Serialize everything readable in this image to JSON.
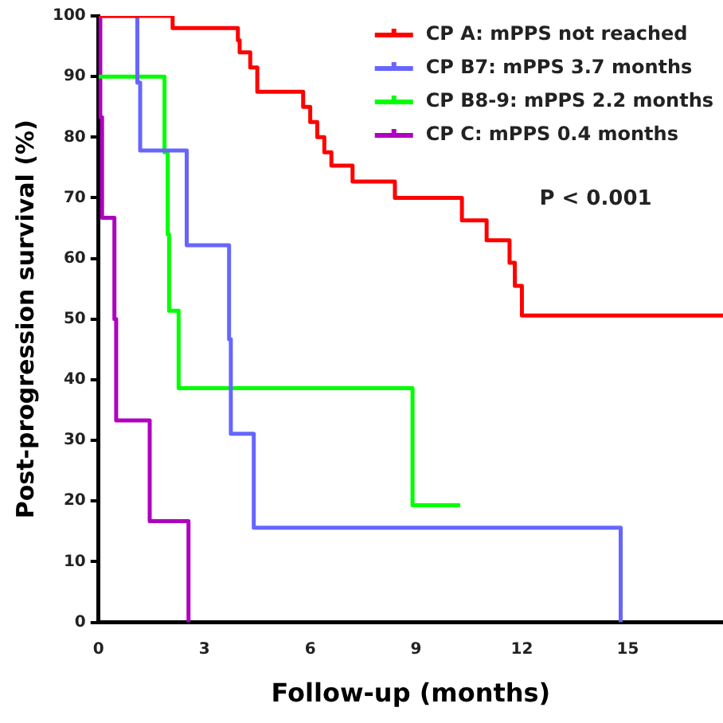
{
  "chart_data": {
    "type": "step",
    "xlabel": "Follow-up (months)",
    "ylabel": "Post-progression survival (%)",
    "xlim": [
      0,
      17.7
    ],
    "xticks": [
      0,
      3,
      6,
      9,
      12,
      15
    ],
    "ylim": [
      0,
      100
    ],
    "yticks": [
      0,
      10,
      20,
      30,
      40,
      50,
      60,
      70,
      80,
      90,
      100
    ],
    "grid": false,
    "legend": "top right",
    "marker": "none",
    "line_style": "solid",
    "annotations": [
      "P < 0.001"
    ],
    "series": [
      {
        "name": "CP A: mPPS not reached",
        "color": "#ff0000",
        "x": [
          0,
          2.1,
          3.95,
          4.0,
          4.3,
          4.5,
          5.8,
          6.0,
          6.2,
          6.4,
          6.6,
          7.2,
          8.4,
          10.3,
          11.0,
          11.65,
          11.8,
          12.0,
          17.7
        ],
        "values": [
          100,
          98,
          96,
          94,
          91.5,
          87.5,
          85,
          82.5,
          80,
          77.5,
          75.3,
          72.7,
          70,
          66.3,
          63,
          59.3,
          55.5,
          50.6,
          50.6
        ]
      },
      {
        "name": "CP B7: mPPS 3.7 months",
        "color": "#6666ff",
        "x": [
          0,
          1.1,
          1.18,
          2.5,
          3.7,
          3.75,
          4.4,
          14.8
        ],
        "values": [
          100,
          89,
          77.8,
          62.2,
          46.7,
          31.1,
          15.6,
          0
        ]
      },
      {
        "name": "CP B8-9: mPPS 2.2 months",
        "color": "#00ff00",
        "x": [
          0,
          1.87,
          1.96,
          2.0,
          2.27,
          8.9,
          10.25
        ],
        "values": [
          90,
          77.5,
          64,
          51.4,
          38.6,
          19.3,
          19.3
        ]
      },
      {
        "name": "CP C: mPPS 0.4 months",
        "color": "#b000c0",
        "x": [
          0,
          0.05,
          0.1,
          0.45,
          0.5,
          1.45,
          2.55
        ],
        "values": [
          100,
          83.3,
          66.7,
          50,
          33.3,
          16.7,
          0
        ]
      }
    ]
  }
}
